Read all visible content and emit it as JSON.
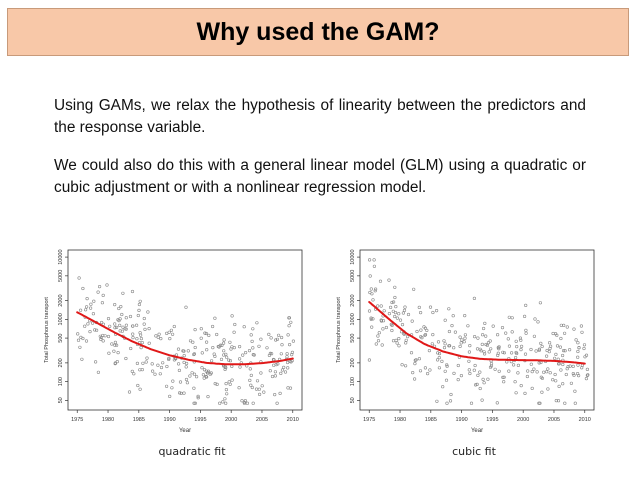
{
  "slide": {
    "title": "Why used the GAM?",
    "paragraph1": "Using GAMs, we relax the hypothesis of linearity between the predictors and the response variable.",
    "paragraph2": "We could also do this with a general linear model (GLM) using a quadratic or cubic adjustment or with a nonlinear regression model.",
    "caption_left": "quadratic fit",
    "caption_right": "cubic fit",
    "fit_color": "#e01818",
    "point_color": "#888888"
  },
  "chart_data": [
    {
      "type": "scatter",
      "xlabel": "Year",
      "ylabel": "Total Phosphorus transport",
      "x_ticks": [
        1975,
        1980,
        1985,
        1990,
        1995,
        2000,
        2005,
        2010
      ],
      "y_ticks": [
        50,
        100,
        200,
        500,
        1000,
        2000,
        5000,
        10000
      ],
      "xlim": [
        1973.5,
        2011.5
      ],
      "ylim": [
        35,
        13000
      ],
      "y_scale": "log",
      "fit": {
        "name": "quadratic fit",
        "x": [
          1975,
          1978,
          1981,
          1984,
          1987,
          1990,
          1993,
          1996,
          1999,
          2002,
          2005,
          2008,
          2010
        ],
        "y": [
          1300,
          900,
          620,
          440,
          330,
          265,
          225,
          200,
          190,
          190,
          198,
          215,
          235
        ]
      }
    },
    {
      "type": "scatter",
      "xlabel": "Year",
      "ylabel": "Total Phosphorus transport",
      "x_ticks": [
        1975,
        1980,
        1985,
        1990,
        1995,
        2000,
        2005,
        2010
      ],
      "y_ticks": [
        50,
        100,
        200,
        500,
        1000,
        2000,
        5000,
        10000
      ],
      "xlim": [
        1973.5,
        2011.5
      ],
      "ylim": [
        35,
        13000
      ],
      "y_scale": "log",
      "fit": {
        "name": "cubic fit",
        "x": [
          1975,
          1978,
          1981,
          1984,
          1987,
          1990,
          1993,
          1996,
          1999,
          2002,
          2005,
          2008,
          2010
        ],
        "y": [
          1900,
          1050,
          600,
          400,
          305,
          255,
          232,
          225,
          222,
          220,
          215,
          205,
          195
        ]
      }
    }
  ]
}
